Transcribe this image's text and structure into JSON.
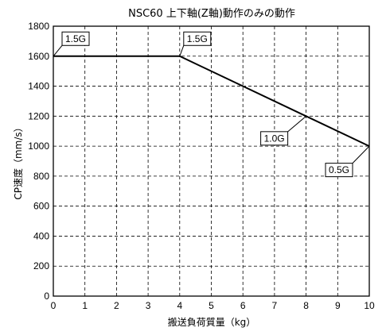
{
  "chart_data": {
    "type": "line",
    "title": "NSC60 上下軸(Z軸)動作のみの動作",
    "xlabel": "搬送負荷質量（kg）",
    "ylabel": "CP速度（mm/s）",
    "xlim": [
      0,
      10
    ],
    "ylim": [
      0,
      1800
    ],
    "x_ticks": [
      "0",
      "1",
      "2",
      "3",
      "4",
      "5",
      "6",
      "7",
      "8",
      "9",
      "10"
    ],
    "y_ticks": [
      "0",
      "200",
      "400",
      "600",
      "800",
      "1000",
      "1200",
      "1400",
      "1600",
      "1800"
    ],
    "grid": true,
    "grid_style": "dashed",
    "series": [
      {
        "x": [
          0,
          4,
          10
        ],
        "y": [
          1600,
          1600,
          1000
        ]
      }
    ],
    "annotations": [
      {
        "text": "1.5G",
        "x": 0,
        "y": 1600
      },
      {
        "text": "1.5G",
        "x": 4,
        "y": 1600
      },
      {
        "text": "1.0G",
        "x": 8,
        "y": 1200
      },
      {
        "text": "0.5G",
        "x": 10,
        "y": 1000
      }
    ]
  }
}
